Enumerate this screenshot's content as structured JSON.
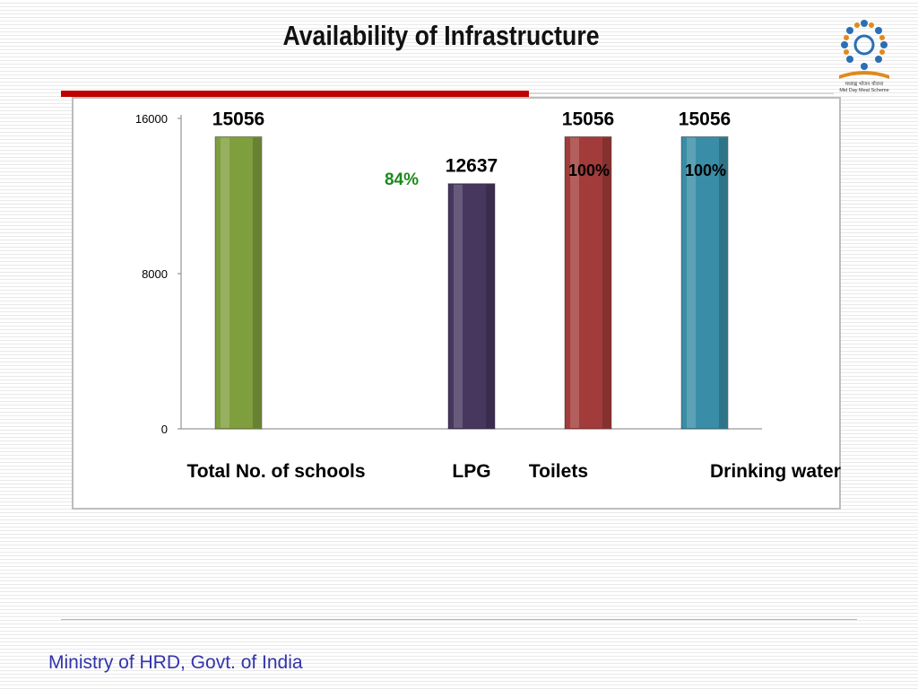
{
  "slide": {
    "title": "Availability of Infrastructure",
    "footer": "Ministry of HRD, Govt. of India",
    "logo_caption_1": "मध्याह्न भोजन योजना",
    "logo_caption_2": "Mid Day Meal Scheme"
  },
  "chart_data": {
    "type": "bar",
    "categories": [
      "Total No. of schools",
      "LPG",
      "Toilets",
      "Drinking water"
    ],
    "values": [
      15056,
      12637,
      15056,
      15056
    ],
    "value_labels": [
      "15056",
      "12637",
      "15056",
      "15056"
    ],
    "percent_labels": [
      "",
      "84%",
      "100%",
      "100%"
    ],
    "colors": [
      "#7f9e3e",
      "#47365e",
      "#a13c3a",
      "#3a8da6"
    ],
    "percent_colors": [
      "",
      "#1a8a1a",
      "#000000",
      "#000000"
    ],
    "yticks": [
      0,
      8000,
      16000
    ],
    "ylim": [
      0,
      16000
    ],
    "title": "",
    "xlabel": "",
    "ylabel": "",
    "grid": false,
    "legend": "none"
  }
}
